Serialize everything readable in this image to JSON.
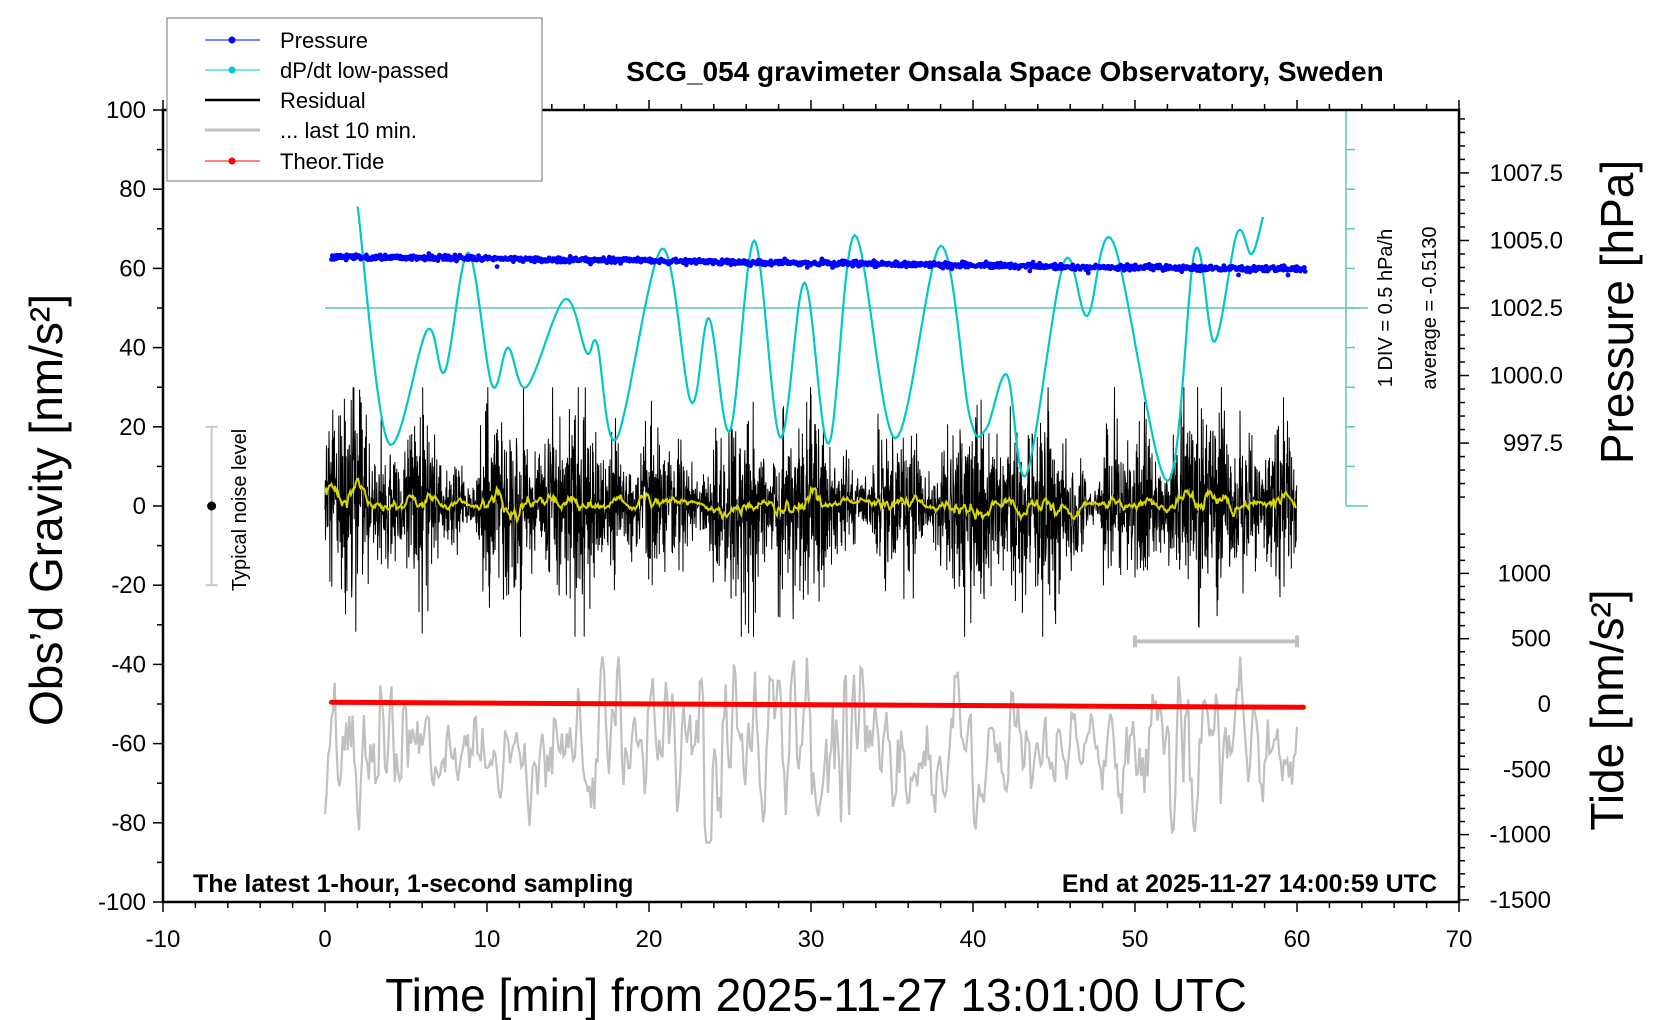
{
  "chart_data": {
    "type": "line",
    "title": "SCG_054 gravimeter Onsala Space Observatory, Sweden",
    "xlabel": "Time [min] from 2025-11-27 13:01:00 UTC",
    "ylabel": "Obs’d Gravity [nm/s²]",
    "y2label": "Pressure [hPa]",
    "y3label": "Tide [nm/s²]",
    "xlim": [
      -10,
      70
    ],
    "ylim": [
      -100,
      100
    ],
    "xticks": [
      -10,
      0,
      10,
      20,
      30,
      40,
      50,
      60,
      70
    ],
    "yticks": [
      100,
      80,
      60,
      40,
      20,
      0,
      -20,
      -40,
      -60,
      -80,
      -100
    ],
    "pressure_ticks": [
      "1007.5",
      "1005.0",
      "1002.5",
      "1000.0",
      "997.5"
    ],
    "tide_ticks": [
      "1000",
      "500",
      "0",
      "-500",
      "-1000",
      "-1500"
    ],
    "grid": false,
    "legend": {
      "position": "top-left",
      "entries": [
        {
          "label": "Pressure",
          "color": "#0000ff",
          "marker": "dot"
        },
        {
          "label": "dP/dt low-passed",
          "color": "#00c8c8",
          "marker": "dot"
        },
        {
          "label": "Residual",
          "color": "#000000",
          "marker": "line"
        },
        {
          "label": "... last 10 min.",
          "color": "#c0c0c0",
          "marker": "line"
        },
        {
          "label": "Theor.Tide",
          "color": "#ff0000",
          "marker": "dot"
        }
      ]
    },
    "annotations": {
      "left_note": "The latest 1-hour, 1-second sampling",
      "right_note": "End at 2025-11-27 14:00:59 UTC",
      "noise_label": "Typical noise level",
      "div_label": "1 DIV = 0.5 hPa/h",
      "average_label": "average = -0.5130"
    },
    "noise_level": {
      "x": -7,
      "range": [
        -20,
        20
      ],
      "center": 0
    },
    "last10_bar": {
      "x": [
        50,
        60
      ]
    },
    "series": {
      "pressure": {
        "unit": "hPa",
        "t": [
          0.4,
          5,
          10,
          15,
          20,
          25,
          30,
          35,
          40,
          45,
          50,
          55,
          60.5
        ],
        "values": [
          1004.38,
          1004.36,
          1004.33,
          1004.29,
          1004.25,
          1004.2,
          1004.16,
          1004.12,
          1004.08,
          1004.03,
          1004.0,
          1003.97,
          1003.94
        ]
      },
      "dpdt_lowpassed": {
        "unit": "hPa/h",
        "average": -0.513,
        "div": 0.5,
        "t": [
          2.02,
          3.9,
          6.3,
          7.4,
          8.85,
          10.3,
          11.3,
          12.45,
          14.8,
          16.15,
          16.8,
          18.0,
          20.8,
          22.6,
          23.7,
          25.0,
          26.5,
          28.1,
          29.6,
          31.1,
          32.7,
          35.2,
          38.0,
          39.8,
          40.8,
          42.1,
          43.3,
          45.6,
          47.05,
          48.65,
          52.0,
          53.7,
          54.9,
          56.3,
          57.2,
          57.9
        ],
        "values": [
          0.767,
          -2.213,
          -0.793,
          -1.313,
          0.187,
          -1.483,
          -1.013,
          -1.508,
          -0.403,
          -1.078,
          -0.968,
          -2.163,
          0.237,
          -1.703,
          -0.643,
          -2.063,
          0.337,
          -2.148,
          -0.193,
          -2.223,
          0.407,
          -2.158,
          0.272,
          -1.883,
          -2.043,
          -1.358,
          -2.613,
          0.057,
          -0.613,
          0.322,
          -2.698,
          0.212,
          -0.938,
          0.432,
          0.167,
          0.637
        ]
      },
      "residual": {
        "unit": "nm/s²",
        "t_range": [
          0,
          60
        ],
        "range": [
          -33,
          30
        ]
      },
      "last_10_min": {
        "unit": "nm/s²",
        "offset": -62,
        "range": [
          -85,
          -38
        ]
      },
      "theor_tide": {
        "unit": "nm/s²",
        "t": [
          0.4,
          60.4
        ],
        "values": [
          13,
          -25
        ]
      }
    }
  }
}
